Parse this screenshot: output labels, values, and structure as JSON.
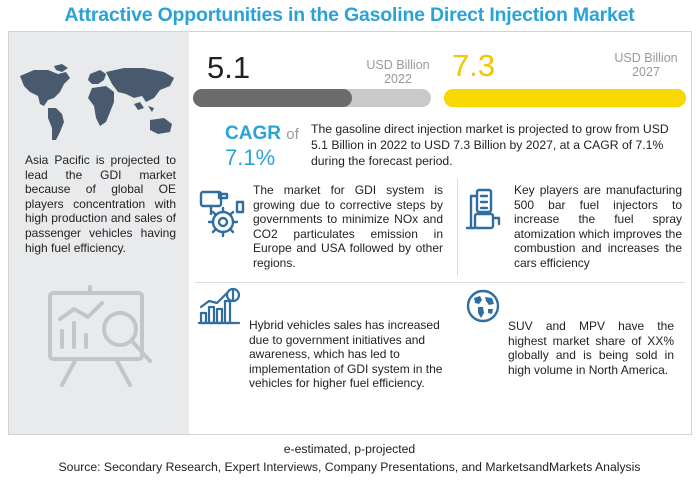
{
  "title": "Attractive Opportunities in the Gasoline Direct Injection Market",
  "left_panel": {
    "text": "Asia Pacific is projected to lead the GDI market because of global OE players concentration with high production and sales of passenger vehicles having high fuel efficiency."
  },
  "market": {
    "value_2022": "5.1",
    "unit_2022": "USD Billion",
    "year_2022": "2022",
    "fill_2022": 0.67,
    "value_2027": "7.3",
    "unit_2027": "USD Billion",
    "year_2027": "2027",
    "fill_2027": 1.0
  },
  "cagr": {
    "label": "CAGR",
    "of": "of",
    "value": "7.1%"
  },
  "summary": "The gasoline direct injection market is projected to grow from USD 5.1 Billion in 2022 to USD  7.3 Billion by 2027, at a CAGR of 7.1% during the forecast period.",
  "tiles": {
    "gdi": "The market for GDI system is growing due to corrective steps by governments to minimize NOx and CO2 particulates emission in Europe and USA followed by other regions.",
    "injectors": "Key players are manufacturing 500 bar fuel injectors to increase the fuel spray atomization which improves the combustion and increases the cars efficiency",
    "hybrid": "Hybrid vehicles sales has increased due to government initiatives and awareness, which has led to implementation of GDI system in the vehicles for higher fuel efficiency.",
    "suv": "SUV and MPV have the highest market share of XX% globally and is being sold in high volume in North America."
  },
  "icons": {
    "map": "world-map-icon",
    "chart": "presentation-chart-icon",
    "gdi": "engine-gear-icon",
    "injector": "fuel-injector-icon",
    "hybrid": "growth-chart-dollar-icon",
    "globe": "globe-icon"
  },
  "colors": {
    "title": "#2aa2d8",
    "bar_2022": "#6b6b6b",
    "bar_2027": "#f7d900",
    "panel": "#e9eaec"
  },
  "footnote": "e-estimated, p-projected",
  "source": "Source: Secondary Research, Expert Interviews, Company Presentations, and MarketsandMarkets Analysis"
}
